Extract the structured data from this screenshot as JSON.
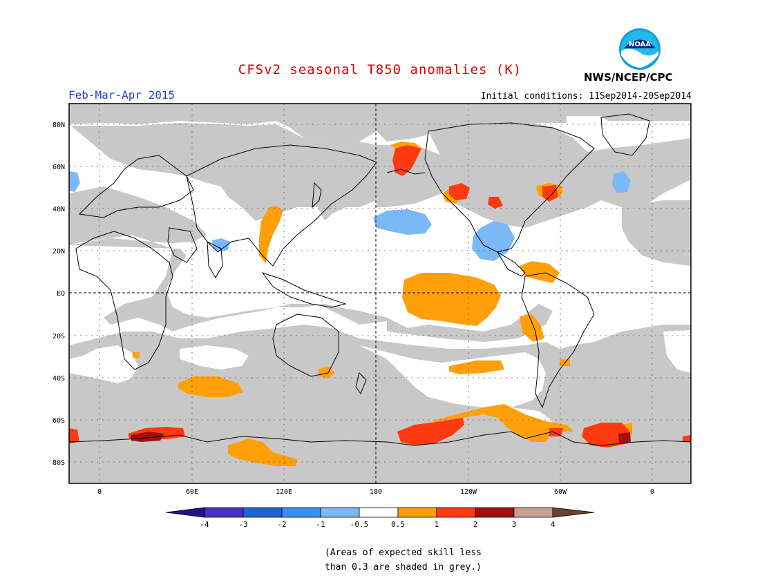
{
  "header": {
    "title": "CFSv2 seasonal T850 anomalies (K)",
    "period": "Feb-Mar-Apr 2015",
    "initial_conditions": "Initial conditions: 11Sep2014-20Sep2014",
    "agency": "NWS/NCEP/CPC",
    "logo_text": "NOAA"
  },
  "map": {
    "lat_labels": [
      "80N",
      "60N",
      "40N",
      "20N",
      "EQ",
      "20S",
      "40S",
      "60S",
      "80S"
    ],
    "lon_labels": [
      "0",
      "60E",
      "120E",
      "180",
      "120W",
      "60W",
      "0"
    ]
  },
  "colorbar": {
    "labels": [
      "-4",
      "-3",
      "-2",
      "-1",
      "-0.5",
      "0.5",
      "1",
      "2",
      "3",
      "4"
    ],
    "colors": [
      "#2a0f8f",
      "#4530c9",
      "#1e63d6",
      "#3c8ff0",
      "#7ab8f6",
      "#ffffff",
      "#ffa00a",
      "#ff3a10",
      "#a30f0f",
      "#c8a090",
      "#6b4230"
    ]
  },
  "footnote": {
    "line1": "(Areas of expected skill less",
    "line2": "than 0.3 are shaded in grey.)"
  },
  "colors": {
    "title": "#e00000",
    "period": "#2140d8",
    "grey_skill": "#c8c8c8",
    "orange": "#ffa00a",
    "red": "#ff3a10",
    "darkred": "#a30f0f",
    "lightblue": "#7ab8f6"
  }
}
